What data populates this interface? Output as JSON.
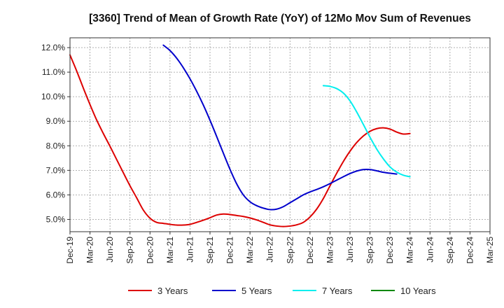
{
  "chart_data": {
    "type": "line",
    "title": "[3360]  Trend of Mean of Growth Rate (YoY) of 12Mo Mov Sum of Revenues",
    "xlabel": "",
    "ylabel": "",
    "ylim": [
      4.5,
      12.4
    ],
    "y_ticks": [
      5.0,
      6.0,
      7.0,
      8.0,
      9.0,
      10.0,
      11.0,
      12.0
    ],
    "y_tick_labels": [
      "5.0%",
      "6.0%",
      "7.0%",
      "8.0%",
      "9.0%",
      "10.0%",
      "11.0%",
      "12.0%"
    ],
    "x_tick_labels": [
      "Dec-19",
      "Mar-20",
      "Jun-20",
      "Sep-20",
      "Dec-20",
      "Mar-21",
      "Jun-21",
      "Sep-21",
      "Dec-21",
      "Mar-22",
      "Jun-22",
      "Sep-22",
      "Dec-22",
      "Mar-23",
      "Jun-23",
      "Sep-23",
      "Dec-23",
      "Mar-24",
      "Jun-24",
      "Sep-24",
      "Dec-24",
      "Mar-25"
    ],
    "grid": true,
    "legend_position": "bottom",
    "series": [
      {
        "name": "3 Years",
        "color": "#dd0000",
        "start_index": 0,
        "values": [
          11.7,
          11.05,
          10.35,
          9.68,
          9.05,
          8.5,
          7.98,
          7.44,
          6.9,
          6.37,
          5.88,
          5.38,
          5.05,
          4.88,
          4.84,
          4.8,
          4.77,
          4.77,
          4.8,
          4.88,
          4.97,
          5.07,
          5.18,
          5.22,
          5.2,
          5.16,
          5.12,
          5.06,
          4.98,
          4.88,
          4.78,
          4.73,
          4.71,
          4.73,
          4.78,
          4.88,
          5.1,
          5.42,
          5.85,
          6.37,
          6.88,
          7.36,
          7.78,
          8.13,
          8.4,
          8.59,
          8.7,
          8.73,
          8.68,
          8.56,
          8.48,
          8.5
        ]
      },
      {
        "name": "5 Years",
        "color": "#0000cc",
        "start_index": 14,
        "values": [
          12.1,
          11.88,
          11.57,
          11.18,
          10.73,
          10.22,
          9.66,
          9.04,
          8.38,
          7.7,
          7.04,
          6.45,
          6.0,
          5.72,
          5.56,
          5.46,
          5.4,
          5.42,
          5.52,
          5.68,
          5.84,
          6.0,
          6.12,
          6.22,
          6.33,
          6.46,
          6.6,
          6.74,
          6.87,
          6.97,
          7.03,
          7.03,
          6.98,
          6.92,
          6.88,
          6.85
        ]
      },
      {
        "name": "7 Years",
        "color": "#00eeee",
        "start_index": 38,
        "values": [
          10.45,
          10.42,
          10.33,
          10.15,
          9.83,
          9.38,
          8.87,
          8.35,
          7.87,
          7.47,
          7.14,
          6.93,
          6.8,
          6.74
        ]
      },
      {
        "name": "10 Years",
        "color": "#008800",
        "start_index": 0,
        "values": []
      }
    ]
  }
}
